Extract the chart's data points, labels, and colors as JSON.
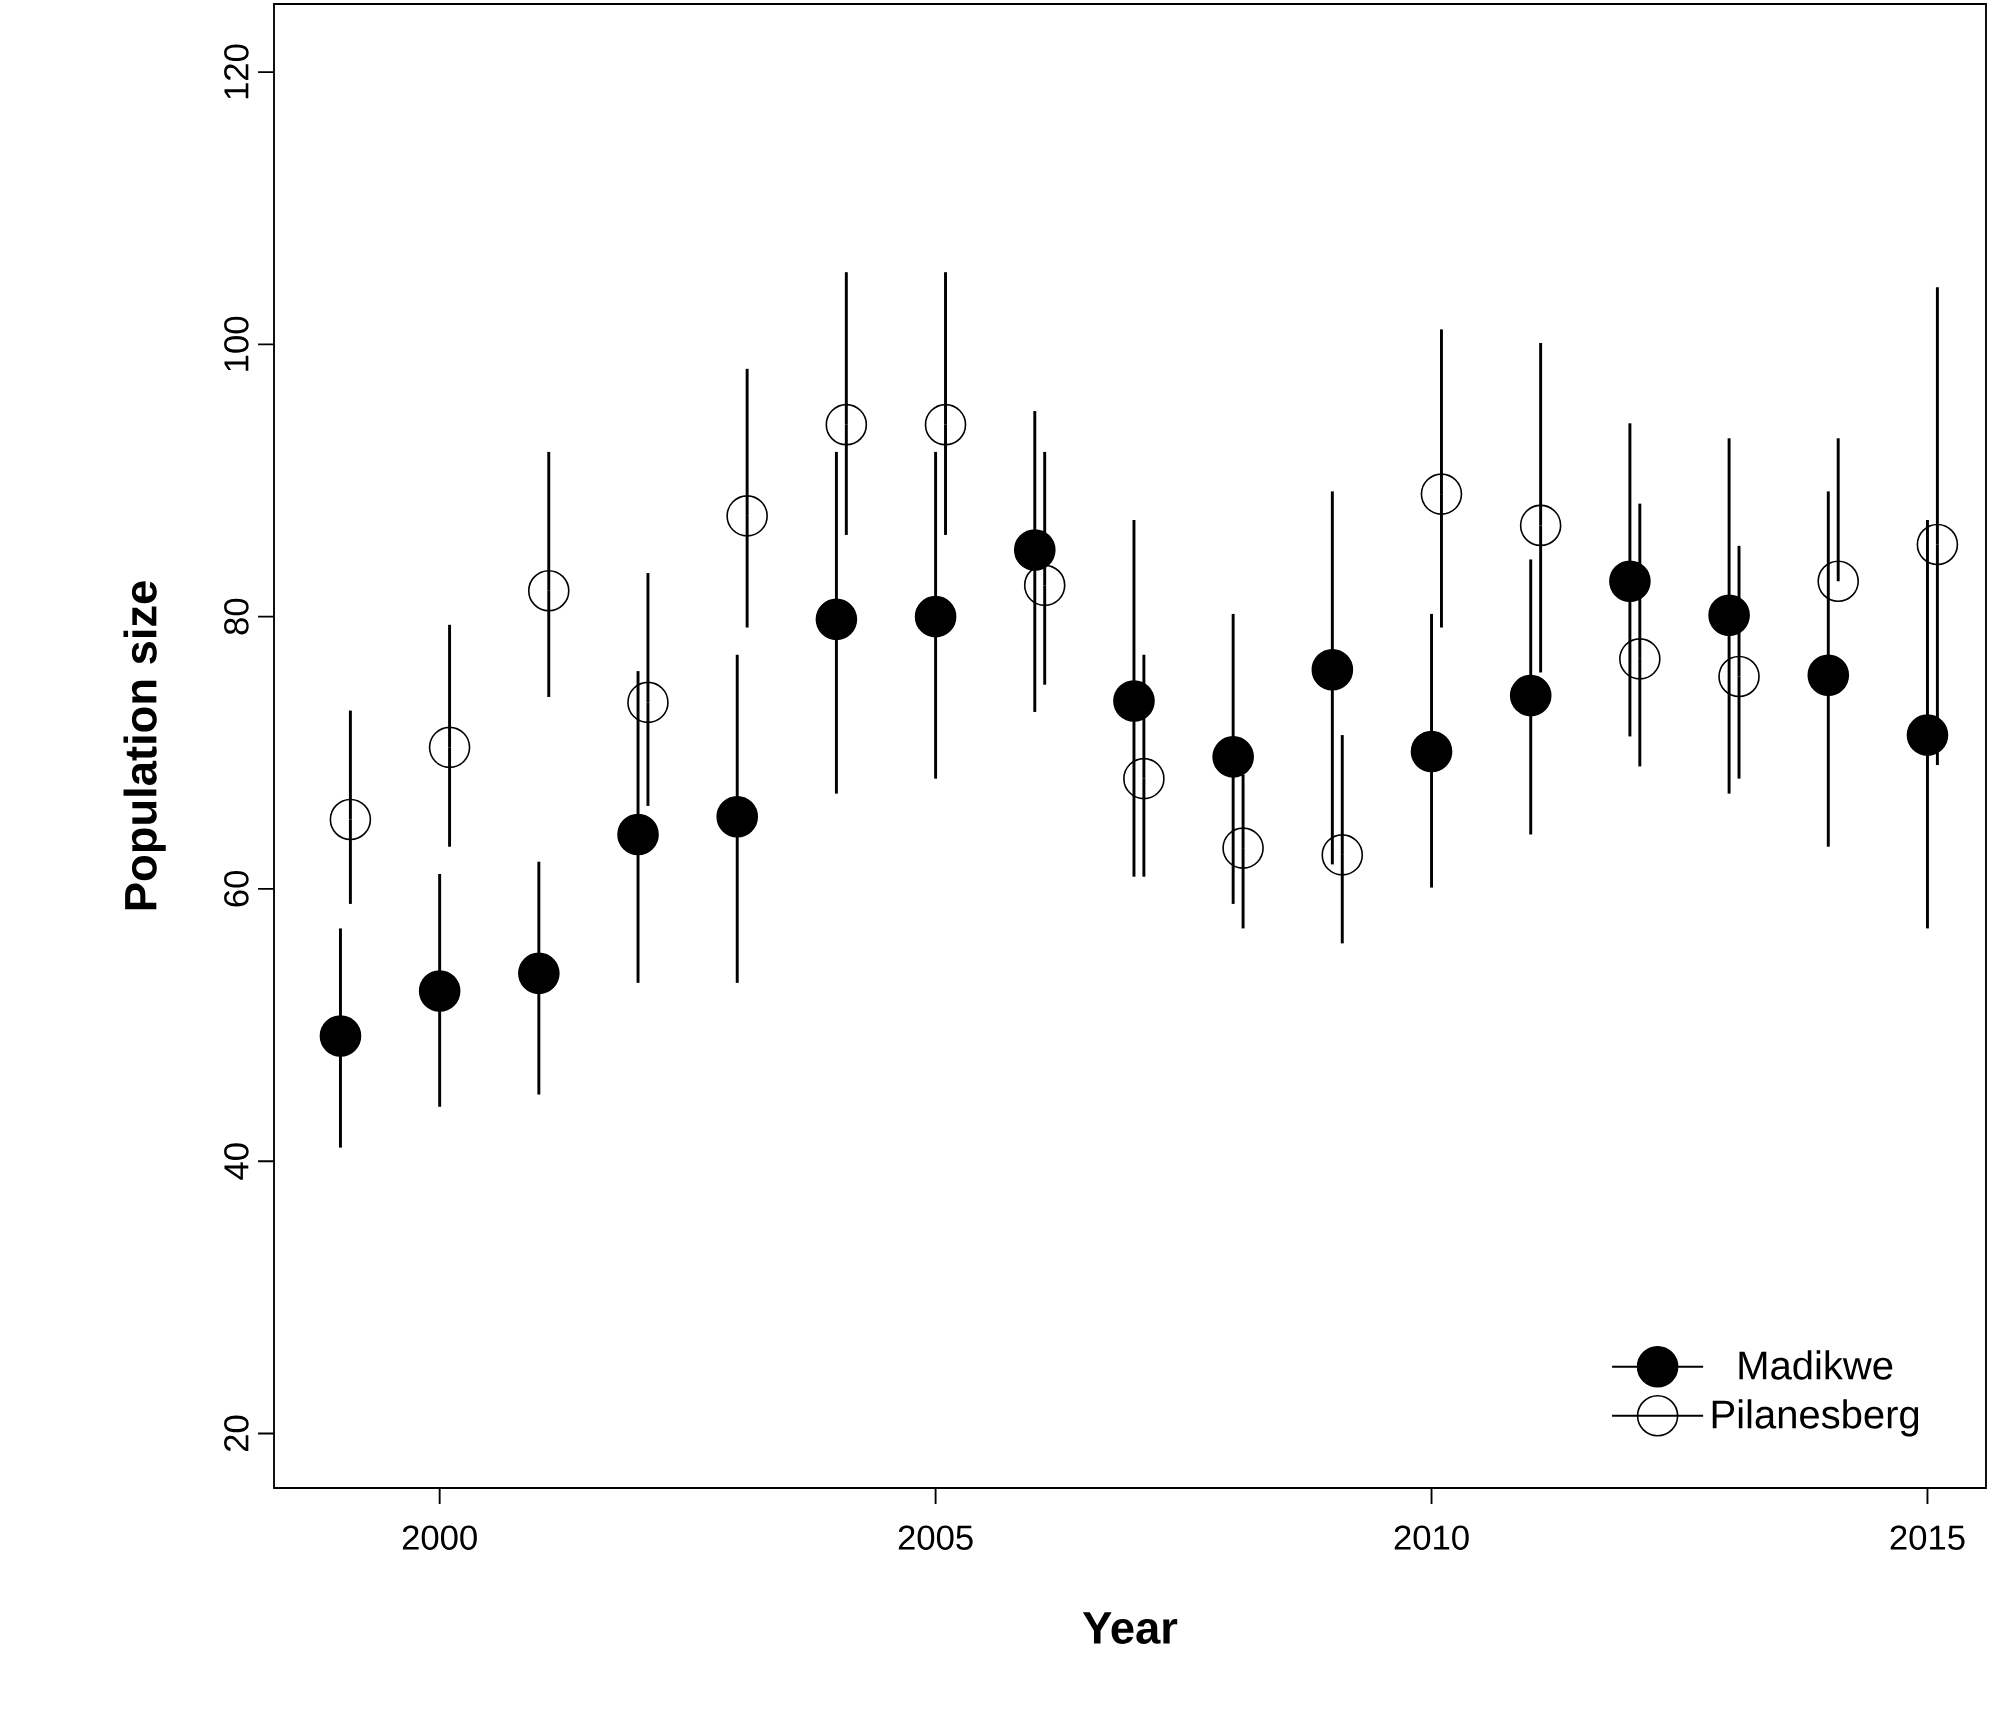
{
  "chart_data": {
    "type": "scatter",
    "xlabel": "Year",
    "ylabel": "Population size",
    "xlim": [
      1998.33,
      2015.59
    ],
    "ylim": [
      16,
      125
    ],
    "xticks": [
      2000,
      2005,
      2010,
      2015
    ],
    "yticks": [
      20,
      40,
      60,
      80,
      100,
      120
    ],
    "marker": "circle",
    "legend": "bottom right",
    "series": [
      {
        "name": "Madikwe",
        "color": "#000000",
        "x": [
          1999,
          2000,
          2001,
          2002,
          2003,
          2004,
          2005,
          2006,
          2007,
          2008,
          2009,
          2010,
          2011,
          2012,
          2013,
          2014,
          2015
        ],
        "values": [
          49.2,
          52.5,
          53.8,
          64.0,
          65.3,
          79.8,
          80.0,
          84.9,
          73.8,
          69.7,
          76.1,
          70.1,
          74.2,
          82.6,
          80.1,
          75.7,
          71.3
        ],
        "errors": [
          [
            41.0,
            57.1
          ],
          [
            44.0,
            61.1
          ],
          [
            44.9,
            62.0
          ],
          [
            53.1,
            76.0
          ],
          [
            53.1,
            77.2
          ],
          [
            67.0,
            92.1
          ],
          [
            68.1,
            92.1
          ],
          [
            73.0,
            95.1
          ],
          [
            60.9,
            87.1
          ],
          [
            58.9,
            80.2
          ],
          [
            61.8,
            89.2
          ],
          [
            60.1,
            80.2
          ],
          [
            64.0,
            84.2
          ],
          [
            71.2,
            94.2
          ],
          [
            67.0,
            93.1
          ],
          [
            63.1,
            89.2
          ],
          [
            57.1,
            87.1
          ]
        ]
      },
      {
        "name": "Pilanesberg",
        "color": "#000000",
        "x": [
          1999.1,
          2000.1,
          2001.1,
          2002.1,
          2003.1,
          2004.1,
          2005.1,
          2006.1,
          2007.1,
          2008.1,
          2009.1,
          2010.1,
          2011.1,
          2012.1,
          2013.1,
          2014.1,
          2015.1
        ],
        "values": [
          65.1,
          70.4,
          81.9,
          73.7,
          87.4,
          94.1,
          94.1,
          82.3,
          68.1,
          63.0,
          62.5,
          89.0,
          86.7,
          76.9,
          75.6,
          82.6,
          85.3
        ],
        "errors": [
          [
            58.9,
            73.1
          ],
          [
            63.1,
            79.4
          ],
          [
            74.1,
            92.1
          ],
          [
            66.1,
            83.2
          ],
          [
            79.2,
            98.2
          ],
          [
            86.0,
            105.3
          ],
          [
            86.0,
            105.3
          ],
          [
            75.0,
            92.1
          ],
          [
            60.9,
            77.2
          ],
          [
            57.1,
            68.4
          ],
          [
            56.0,
            71.3
          ],
          [
            79.2,
            101.1
          ],
          [
            75.9,
            100.1
          ],
          [
            69.0,
            88.3
          ],
          [
            68.1,
            85.2
          ],
          [
            82.6,
            93.1
          ],
          [
            69.1,
            104.2
          ]
        ]
      }
    ]
  }
}
